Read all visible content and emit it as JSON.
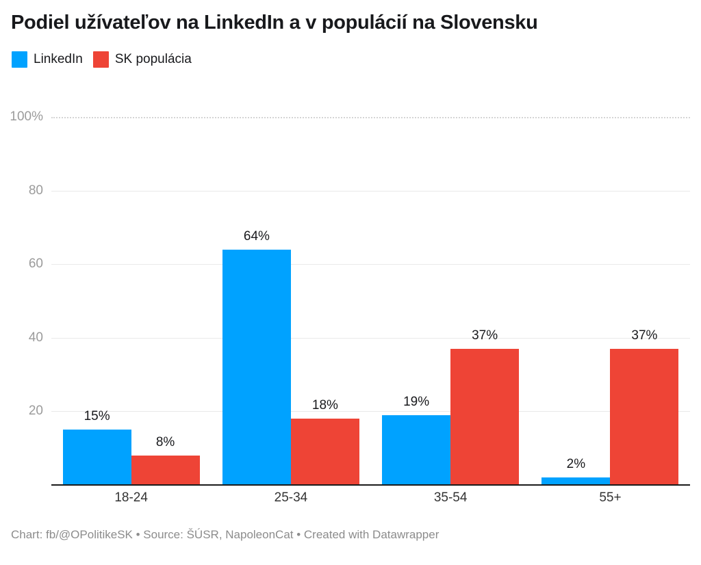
{
  "title": "Podiel užívateľov na LinkedIn a v populácií na Slovensku",
  "footer": {
    "text": "Chart: fb/@OPolitikeSK • Source: ŠÚSR, NapoleonCat • Created with Datawrapper"
  },
  "colors": {
    "linkedin_blue": "#00a2ff",
    "population_red": "#ee4436",
    "text_dark": "#18191c",
    "axis_gray": "#9b9b9b",
    "gridline": "#e9e9e9"
  },
  "chart_data": {
    "type": "bar",
    "title": "Podiel užívateľov na LinkedIn a v populácií na Slovensku",
    "categories": [
      "18-24",
      "25-34",
      "35-54",
      "55+"
    ],
    "series": [
      {
        "name": "LinkedIn",
        "color": "#00a2ff",
        "values": [
          15,
          64,
          19,
          2
        ],
        "labels": [
          "15%",
          "64%",
          "19%",
          "2%"
        ]
      },
      {
        "name": "SK populácia",
        "color": "#ee4436",
        "values": [
          8,
          18,
          37,
          37
        ],
        "labels": [
          "8%",
          "18%",
          "37%",
          "37%"
        ]
      }
    ],
    "xlabel": "",
    "ylabel": "",
    "ylim": [
      0,
      100
    ],
    "grid": true,
    "legend_position": "top-left",
    "y_axis": {
      "ticks": [
        {
          "value": 100,
          "label": "100%",
          "style": "dotted"
        },
        {
          "value": 80,
          "label": "80",
          "style": "solid"
        },
        {
          "value": 60,
          "label": "60",
          "style": "solid"
        },
        {
          "value": 40,
          "label": "40",
          "style": "solid"
        },
        {
          "value": 20,
          "label": "20",
          "style": "solid"
        }
      ]
    }
  }
}
